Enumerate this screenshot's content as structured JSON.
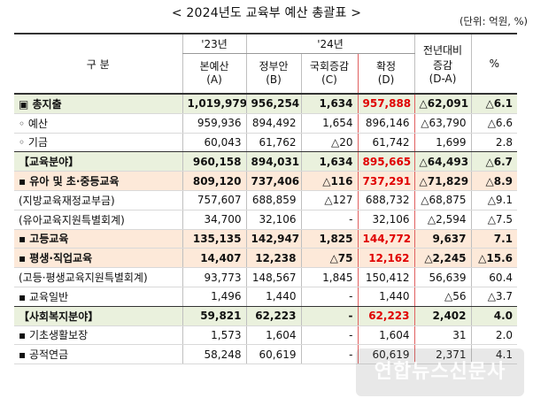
{
  "title": "< 2024년도 교육부 예산 총괄표 >",
  "unit": "(단위: 억원, %)",
  "header": {
    "category": "구         분",
    "year23": "'23년",
    "year24": "'24년",
    "col_a": "본예산\n(A)",
    "col_b": "정부안\n(B)",
    "col_c": "국회증감\n(C)",
    "col_d": "확정\n(D)",
    "col_diff": "전년대비\n증감\n(D-A)",
    "col_pct": "%"
  },
  "rows": [
    {
      "label": "▣ 총지출",
      "a": "1,019,979",
      "b": "956,254",
      "c": "1,634",
      "d": "957,888",
      "diff": "△62,091",
      "pct": "△6.1"
    },
    {
      "label": "◦ 예산",
      "a": "959,936",
      "b": "894,492",
      "c": "1,654",
      "d": "896,146",
      "diff": "△63,790",
      "pct": "△6.6"
    },
    {
      "label": "◦ 기금",
      "a": "60,043",
      "b": "61,762",
      "c": "△20",
      "d": "61,742",
      "diff": "1,699",
      "pct": "2.8"
    },
    {
      "label": "【교육분야】",
      "a": "960,158",
      "b": "894,031",
      "c": "1,634",
      "d": "895,665",
      "diff": "△64,493",
      "pct": "△6.7"
    },
    {
      "label": " ▪ 유아 및 초·중등교육",
      "a": "809,120",
      "b": "737,406",
      "c": "△116",
      "d": "737,291",
      "diff": "△71,829",
      "pct": "△8.9"
    },
    {
      "label": "(지방교육재정교부금)",
      "a": "757,607",
      "b": "688,859",
      "c": "△127",
      "d": "688,732",
      "diff": "△68,875",
      "pct": "△9.1"
    },
    {
      "label": "(유아교육지원특별회계)",
      "a": "34,700",
      "b": "32,106",
      "c": "-",
      "d": "32,106",
      "diff": "△2,594",
      "pct": "△7.5"
    },
    {
      "label": " ▪ 고등교육",
      "a": "135,135",
      "b": "142,947",
      "c": "1,825",
      "d": "144,772",
      "diff": "9,637",
      "pct": "7.1"
    },
    {
      "label": " ▪ 평생·직업교육",
      "a": "14,407",
      "b": "12,238",
      "c": "△75",
      "d": "12,162",
      "diff": "△2,245",
      "pct": "△15.6"
    },
    {
      "label": "(고등·평생교육지원특별회계)",
      "a": "93,773",
      "b": "148,567",
      "c": "1,845",
      "d": "150,412",
      "diff": "56,639",
      "pct": "60.4"
    },
    {
      "label": " ▪ 교육일반",
      "a": "1,496",
      "b": "1,440",
      "c": "-",
      "d": "1,440",
      "diff": "△56",
      "pct": "△3.7"
    },
    {
      "label": "【사회복지분야】",
      "a": "59,821",
      "b": "62,223",
      "c": "-",
      "d": "62,223",
      "diff": "2,402",
      "pct": "4.0"
    },
    {
      "label": " ▪ 기초생활보장",
      "a": "1,573",
      "b": "1,604",
      "c": "-",
      "d": "1,604",
      "diff": "31",
      "pct": "2.0"
    },
    {
      "label": " ▪ 공적연금",
      "a": "58,248",
      "b": "60,619",
      "c": "-",
      "d": "60,619",
      "diff": "2,371",
      "pct": "4.1"
    }
  ],
  "watermark": "연합뉴스신문사",
  "colors": {
    "green_row": "#eaf1dd",
    "orange_row": "#fde9d9",
    "highlight_text": "#e00000",
    "highlight_border": "#e06060"
  }
}
